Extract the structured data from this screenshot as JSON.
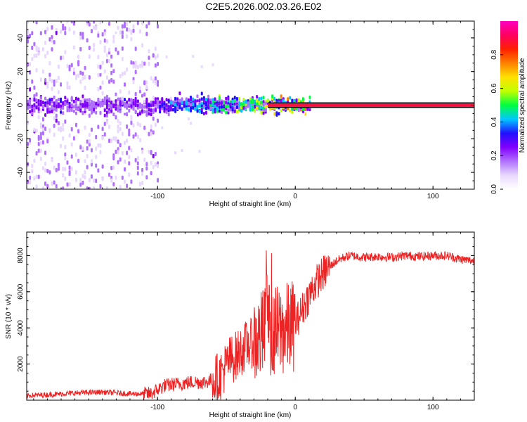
{
  "figure": {
    "title": "C2E5.2026.002.03.26.E02"
  },
  "chart_data": [
    {
      "type": "heatmap",
      "title": "C2E5.2026.002.03.26.E02",
      "xlabel": "Height of straight line (km)",
      "ylabel": "Frequency (Hz)",
      "xlim": [
        -195,
        130
      ],
      "ylim": [
        -50,
        50
      ],
      "xticks": [
        -100,
        0,
        100
      ],
      "yticks": [
        -40,
        -20,
        0,
        20,
        40
      ],
      "colorbar": {
        "label": "Normalized spectral amplitude",
        "range": [
          0,
          1
        ],
        "ticks": [
          "0.0",
          "0.2",
          "0.4",
          "0.6",
          "0.8"
        ],
        "colors": [
          "#ffffff",
          "#e8d8ff",
          "#b070ff",
          "#8000ff",
          "#2010ff",
          "#00c8ff",
          "#00ff40",
          "#c0ff00",
          "#ffe000",
          "#ff8000",
          "#ff2000",
          "#ff0060",
          "#ff00c0"
        ]
      },
      "features": {
        "carrier_line_hz": 0,
        "noise_band_region_km": [
          -195,
          -100
        ],
        "dense_band_region_km": [
          -100,
          10
        ],
        "dense_band_halfwidth_hz": 8,
        "peak_amplitude_start_km": -20
      }
    },
    {
      "type": "line",
      "xlabel": "Height of straight line (km)",
      "ylabel": "SNR (10 * v/v)",
      "xlim": [
        -195,
        130
      ],
      "ylim": [
        0,
        9300
      ],
      "xticks": [
        -100,
        0,
        100
      ],
      "yticks": [
        2000,
        4000,
        6000,
        8000
      ],
      "color": "#ee2222",
      "series": [
        {
          "name": "SNR",
          "x": [
            -195,
            -180,
            -160,
            -140,
            -120,
            -105,
            -95,
            -85,
            -75,
            -65,
            -55,
            -48,
            -42,
            -36,
            -30,
            -25,
            -20,
            -15,
            -10,
            -5,
            0,
            5,
            10,
            15,
            20,
            25,
            30,
            35,
            40,
            50,
            60,
            70,
            80,
            90,
            100,
            110,
            120,
            130
          ],
          "y": [
            250,
            300,
            400,
            450,
            350,
            350,
            800,
            900,
            1000,
            1000,
            1300,
            2200,
            2500,
            3000,
            3200,
            3500,
            4000,
            3800,
            3800,
            4000,
            4200,
            5000,
            5800,
            6500,
            7000,
            7400,
            7700,
            7900,
            8000,
            7900,
            7950,
            7900,
            8000,
            7950,
            8000,
            8000,
            7800,
            7700
          ]
        }
      ]
    }
  ]
}
